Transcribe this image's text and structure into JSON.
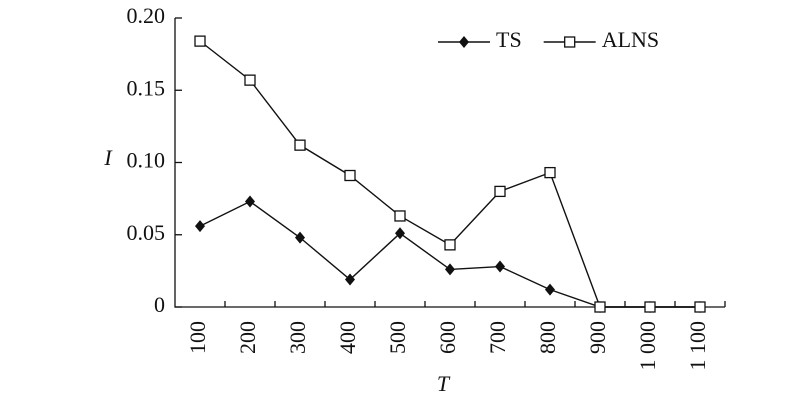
{
  "chart_data": {
    "type": "line",
    "x_label": "T",
    "y_label": "I",
    "categories": [
      "100",
      "200",
      "300",
      "400",
      "500",
      "600",
      "700",
      "800",
      "900",
      "1 000",
      "1 100"
    ],
    "series": [
      {
        "name": "TS",
        "color": "#111111",
        "marker": "diamond",
        "values": [
          0.056,
          0.073,
          0.048,
          0.019,
          0.051,
          0.026,
          0.028,
          0.012,
          0,
          0,
          0
        ]
      },
      {
        "name": "ALNS",
        "color": "#111111",
        "marker": "square",
        "values": [
          0.184,
          0.157,
          0.112,
          0.091,
          0.063,
          0.043,
          0.08,
          0.093,
          0,
          0,
          0
        ]
      }
    ],
    "ylim": [
      0,
      0.2
    ],
    "yticks": [
      0,
      0.05,
      {
        "value": 0.1,
        "label": "0.10"
      },
      0.15,
      {
        "value": 0.2,
        "label": "0.20"
      }
    ],
    "grid": false,
    "legend": "top-right"
  }
}
